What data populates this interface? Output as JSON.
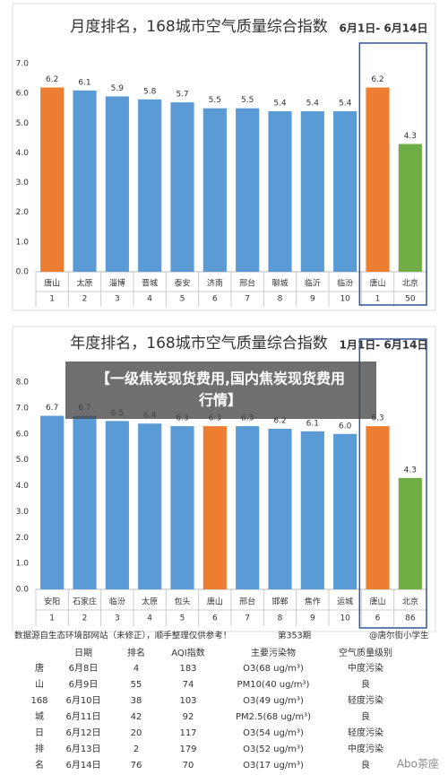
{
  "chart_data": [
    {
      "type": "bar",
      "title": "月度排名，168城市空气质量综合指数",
      "date_range": "6月1日- 6月14日",
      "categories": [
        "唐山",
        "太原",
        "淄博",
        "晋城",
        "泰安",
        "济南",
        "邢台",
        "聊城",
        "临沂",
        "临汾",
        "唐山",
        "北京"
      ],
      "ranks": [
        1,
        2,
        3,
        4,
        5,
        6,
        7,
        8,
        9,
        10,
        1,
        50
      ],
      "values": [
        6.2,
        6.1,
        5.9,
        5.8,
        5.7,
        5.5,
        5.5,
        5.4,
        5.4,
        5.4,
        6.2,
        4.3
      ],
      "value_labels": [
        "6.2",
        "6.1",
        "5.9",
        "5.8",
        "5.7",
        "5.5",
        "5.5",
        "5.4",
        "5.4",
        "5.4",
        "6.2",
        "4.3"
      ],
      "colors": [
        "#ed7d31",
        "#5b9bd5",
        "#5b9bd5",
        "#5b9bd5",
        "#5b9bd5",
        "#5b9bd5",
        "#5b9bd5",
        "#5b9bd5",
        "#5b9bd5",
        "#5b9bd5",
        "#ed7d31",
        "#70ad47"
      ],
      "ylim": [
        0,
        7
      ],
      "yticks": [
        {
          "value": 0,
          "label": "0.0"
        },
        {
          "value": 1,
          "label": "1.0"
        },
        {
          "value": 2,
          "label": "2.0"
        },
        {
          "value": 3,
          "label": "3.0"
        },
        {
          "value": 4,
          "label": "4.0"
        },
        {
          "value": 5,
          "label": "5.0"
        },
        {
          "value": 6,
          "label": "6.0"
        },
        {
          "value": 7,
          "label": "7.0"
        }
      ],
      "grid": false
    },
    {
      "type": "bar",
      "title": "年度排名，168城市空气质量综合指数",
      "date_range": "1月1日- 6月14日",
      "categories": [
        "安阳",
        "石家庄",
        "临汾",
        "太原",
        "包头",
        "唐山",
        "邢台",
        "邯郸",
        "焦作",
        "运城",
        "唐山",
        "北京"
      ],
      "ranks": [
        1,
        2,
        3,
        4,
        5,
        6,
        7,
        8,
        9,
        10,
        6,
        86
      ],
      "values": [
        6.7,
        6.7,
        6.5,
        6.4,
        6.3,
        6.3,
        6.3,
        6.2,
        6.1,
        6.0,
        6.3,
        4.3
      ],
      "value_labels": [
        "6.7",
        "6.7",
        "6.5",
        "6.4",
        "6.3",
        "6.3",
        "6.3",
        "6.2",
        "6.1",
        "6.0",
        "6.3",
        "4.3"
      ],
      "colors": [
        "#5b9bd5",
        "#5b9bd5",
        "#5b9bd5",
        "#5b9bd5",
        "#5b9bd5",
        "#ed7d31",
        "#5b9bd5",
        "#5b9bd5",
        "#5b9bd5",
        "#5b9bd5",
        "#ed7d31",
        "#70ad47"
      ],
      "ylim": [
        0,
        8
      ],
      "yticks": [
        {
          "value": 0,
          "label": "0.0"
        },
        {
          "value": 1,
          "label": "1.0"
        },
        {
          "value": 2,
          "label": "2.0"
        },
        {
          "value": 3,
          "label": "3.0"
        },
        {
          "value": 4,
          "label": "4.0"
        },
        {
          "value": 5,
          "label": "5.0"
        },
        {
          "value": 6,
          "label": "6.0"
        },
        {
          "value": 7,
          "label": "7.0"
        },
        {
          "value": 8,
          "label": "8.0"
        }
      ],
      "grid": false
    }
  ],
  "banner": [
    "【一级焦炭现货费用,国内焦炭现货费用",
    "行情】"
  ],
  "source_note": {
    "text": "数据源自生态环境部网站（未修正），顺手整理仅供参考！",
    "issue": "第353期",
    "author": "@唐尔街小学生"
  },
  "table": {
    "header": [
      "日期",
      "排名",
      "AQI指数",
      "主要污染物",
      "空气质量级别"
    ],
    "side": [
      "唐",
      "山",
      "168",
      "城",
      "日",
      "排",
      "名"
    ],
    "rows": [
      [
        "6月8日",
        4,
        183,
        "O3(68 ug/m³)",
        "中度污染"
      ],
      [
        "6月9日",
        55,
        74,
        "PM10(40 ug/m³)",
        "良"
      ],
      [
        "6月10日",
        38,
        103,
        "O3(49 ug/m³)",
        "轻度污染"
      ],
      [
        "6月11日",
        42,
        92,
        "PM2.5(68 ug/m³)",
        "良"
      ],
      [
        "6月12日",
        20,
        117,
        "O3(54 ug/m³)",
        "轻度污染"
      ],
      [
        "6月13日",
        2,
        179,
        "O3(52 ug/m³)",
        "中度污染"
      ],
      [
        "6月14日",
        76,
        70,
        "O3(17 ug/m³)",
        "良"
      ]
    ]
  },
  "watermark": "Abo茶座"
}
